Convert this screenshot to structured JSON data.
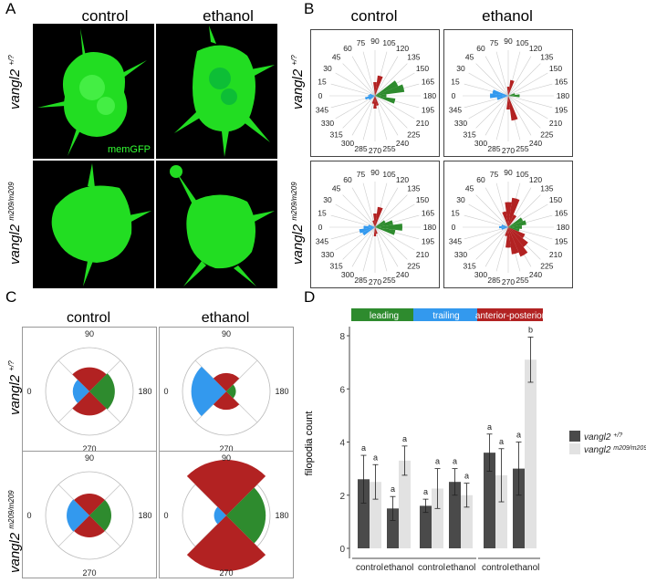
{
  "panels": {
    "A": "A",
    "B": "B",
    "C": "C",
    "D": "D"
  },
  "columns": {
    "control": "control",
    "ethanol": "ethanol"
  },
  "rows": {
    "row1": {
      "gene": "vangl2",
      "genotype": "+/?"
    },
    "row2": {
      "gene": "vangl2",
      "genotype": "m209/m209"
    }
  },
  "micro_label": "memGFP",
  "colors": {
    "leading": "#2e8b2e",
    "trailing": "#3399ee",
    "ap": "#b22222",
    "gfp": "#33ff33",
    "bar_wt": "#4a4a4a",
    "bar_mut": "#e2e2e2"
  },
  "rose_angles": [
    "0",
    "15",
    "30",
    "45",
    "60",
    "75",
    "90",
    "105",
    "120",
    "135",
    "150",
    "165",
    "180",
    "195",
    "210",
    "225",
    "240",
    "255",
    "270",
    "285",
    "300",
    "315",
    "330",
    "345"
  ],
  "polar_angles": {
    "a90": "90",
    "a0": "0",
    "a180": "180",
    "a270": "270"
  },
  "rose_B": [
    {
      "id": "b-wt-control",
      "sectors": [
        {
          "a": 165,
          "r": 0.65,
          "c": "leading"
        },
        {
          "a": 150,
          "r": 0.55,
          "c": "leading"
        },
        {
          "a": 195,
          "r": 0.45,
          "c": "leading"
        },
        {
          "a": 180,
          "r": 0.25,
          "c": "leading"
        },
        {
          "a": 105,
          "r": 0.45,
          "c": "ap"
        },
        {
          "a": 90,
          "r": 0.3,
          "c": "ap"
        },
        {
          "a": 270,
          "r": 0.28,
          "c": "ap"
        },
        {
          "a": 255,
          "r": 0.22,
          "c": "ap"
        },
        {
          "a": 285,
          "r": 0.18,
          "c": "ap"
        },
        {
          "a": 0,
          "r": 0.15,
          "c": "trailing"
        },
        {
          "a": 15,
          "r": 0.12,
          "c": "trailing"
        },
        {
          "a": 345,
          "r": 0.22,
          "c": "trailing"
        },
        {
          "a": 330,
          "r": 0.15,
          "c": "trailing"
        }
      ]
    },
    {
      "id": "b-wt-ethanol",
      "sectors": [
        {
          "a": 0,
          "r": 0.4,
          "c": "trailing"
        },
        {
          "a": 15,
          "r": 0.35,
          "c": "trailing"
        },
        {
          "a": 345,
          "r": 0.25,
          "c": "trailing"
        },
        {
          "a": 180,
          "r": 0.25,
          "c": "leading"
        },
        {
          "a": 165,
          "r": 0.15,
          "c": "leading"
        },
        {
          "a": 255,
          "r": 0.55,
          "c": "ap"
        },
        {
          "a": 270,
          "r": 0.3,
          "c": "ap"
        },
        {
          "a": 105,
          "r": 0.35,
          "c": "ap"
        },
        {
          "a": 90,
          "r": 0.2,
          "c": "ap"
        }
      ]
    },
    {
      "id": "b-mut-control",
      "sectors": [
        {
          "a": 180,
          "r": 0.6,
          "c": "leading"
        },
        {
          "a": 165,
          "r": 0.4,
          "c": "leading"
        },
        {
          "a": 195,
          "r": 0.45,
          "c": "leading"
        },
        {
          "a": 150,
          "r": 0.25,
          "c": "leading"
        },
        {
          "a": 105,
          "r": 0.45,
          "c": "ap"
        },
        {
          "a": 90,
          "r": 0.3,
          "c": "ap"
        },
        {
          "a": 75,
          "r": 0.15,
          "c": "ap"
        },
        {
          "a": 270,
          "r": 0.2,
          "c": "ap"
        },
        {
          "a": 255,
          "r": 0.15,
          "c": "ap"
        },
        {
          "a": 345,
          "r": 0.35,
          "c": "trailing"
        },
        {
          "a": 0,
          "r": 0.25,
          "c": "trailing"
        },
        {
          "a": 330,
          "r": 0.3,
          "c": "trailing"
        },
        {
          "a": 15,
          "r": 0.15,
          "c": "trailing"
        }
      ]
    },
    {
      "id": "b-mut-ethanol",
      "sectors": [
        {
          "a": 90,
          "r": 0.55,
          "c": "ap"
        },
        {
          "a": 105,
          "r": 0.65,
          "c": "ap"
        },
        {
          "a": 75,
          "r": 0.35,
          "c": "ap"
        },
        {
          "a": 120,
          "r": 0.3,
          "c": "ap"
        },
        {
          "a": 240,
          "r": 0.7,
          "c": "ap"
        },
        {
          "a": 255,
          "r": 0.6,
          "c": "ap"
        },
        {
          "a": 225,
          "r": 0.55,
          "c": "ap"
        },
        {
          "a": 270,
          "r": 0.45,
          "c": "ap"
        },
        {
          "a": 210,
          "r": 0.4,
          "c": "ap"
        },
        {
          "a": 285,
          "r": 0.2,
          "c": "ap"
        },
        {
          "a": 150,
          "r": 0.35,
          "c": "leading"
        },
        {
          "a": 165,
          "r": 0.4,
          "c": "leading"
        },
        {
          "a": 180,
          "r": 0.3,
          "c": "leading"
        },
        {
          "a": 195,
          "r": 0.25,
          "c": "leading"
        },
        {
          "a": 0,
          "r": 0.2,
          "c": "trailing"
        },
        {
          "a": 345,
          "r": 0.15,
          "c": "trailing"
        },
        {
          "a": 15,
          "r": 0.15,
          "c": "trailing"
        }
      ]
    }
  ],
  "polar_C": [
    {
      "id": "c-wt-control",
      "leading": 0.58,
      "trailing": 0.38,
      "ap": 0.55
    },
    {
      "id": "c-wt-ethanol",
      "leading": 0.22,
      "trailing": 0.8,
      "ap": 0.42
    },
    {
      "id": "c-mut-control",
      "leading": 0.5,
      "trailing": 0.52,
      "ap": 0.5
    },
    {
      "id": "c-mut-ethanol",
      "leading": 0.9,
      "trailing": 0.28,
      "ap": 1.27
    }
  ],
  "chart_data": {
    "type": "bar",
    "ylabel": "filopodia count",
    "ylim": [
      0,
      8.5
    ],
    "yticks": [
      "0",
      "2",
      "4",
      "6",
      "8"
    ],
    "facets": [
      "leading",
      "trailing",
      "anterior-posterior"
    ],
    "categories": [
      "control",
      "ethanol"
    ],
    "legend": [
      {
        "gene": "vangl2",
        "genotype": "+/?"
      },
      {
        "gene": "vangl2",
        "genotype": "m209/m209"
      }
    ],
    "groups": [
      {
        "facet": "leading",
        "category": "control",
        "values": [
          2.6,
          2.5
        ],
        "err": [
          0.9,
          0.65
        ],
        "sig": [
          "a",
          "a"
        ]
      },
      {
        "facet": "leading",
        "category": "ethanol",
        "values": [
          1.5,
          3.3
        ],
        "err": [
          0.45,
          0.55
        ],
        "sig": [
          "a",
          "a"
        ]
      },
      {
        "facet": "trailing",
        "category": "control",
        "values": [
          1.6,
          2.25
        ],
        "err": [
          0.25,
          0.75
        ],
        "sig": [
          "a",
          "a"
        ]
      },
      {
        "facet": "trailing",
        "category": "ethanol",
        "values": [
          2.5,
          2.0
        ],
        "err": [
          0.5,
          0.45
        ],
        "sig": [
          "a",
          "a"
        ]
      },
      {
        "facet": "anterior-posterior",
        "category": "control",
        "values": [
          3.6,
          2.75
        ],
        "err": [
          0.7,
          1.0
        ],
        "sig": [
          "a",
          "a"
        ]
      },
      {
        "facet": "anterior-posterior",
        "category": "ethanol",
        "values": [
          3.0,
          7.1
        ],
        "err": [
          1.0,
          0.85
        ],
        "sig": [
          "a",
          "b"
        ]
      }
    ]
  }
}
